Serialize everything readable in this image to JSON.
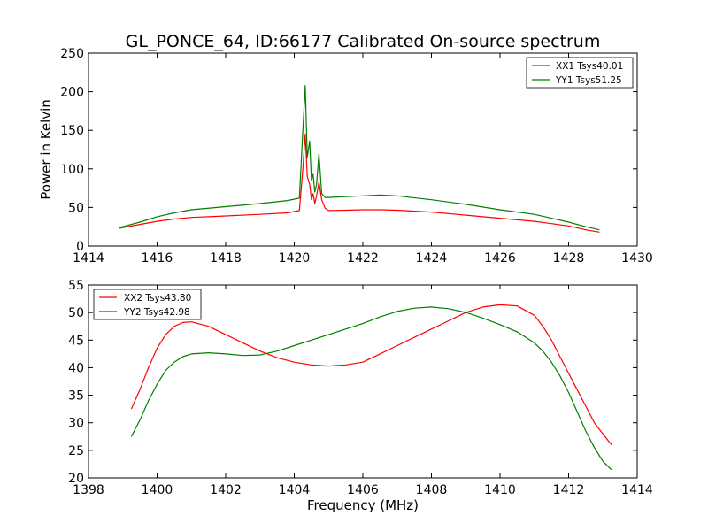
{
  "title": "GL_PONCE_64, ID:66177 Calibrated On-source spectrum",
  "colors": {
    "red": "#ff0000",
    "green": "#007f00"
  },
  "chart_data": [
    {
      "type": "line",
      "ylabel": "Power in Kelvin",
      "xlabel": "",
      "xlim": [
        1414,
        1430
      ],
      "ylim": [
        0,
        250
      ],
      "xticks": [
        "1414",
        "1416",
        "1418",
        "1420",
        "1422",
        "1424",
        "1426",
        "1428",
        "1430"
      ],
      "yticks": [
        "0",
        "50",
        "100",
        "150",
        "200",
        "250"
      ],
      "legend_position": "top-right",
      "series": [
        {
          "name": "XX1 Tsys40.01",
          "color": "#ff0000",
          "x": [
            1414.9,
            1415.5,
            1416.0,
            1416.5,
            1417.0,
            1418.0,
            1419.0,
            1419.8,
            1420.15,
            1420.25,
            1420.32,
            1420.38,
            1420.45,
            1420.5,
            1420.55,
            1420.6,
            1420.65,
            1420.72,
            1420.8,
            1420.9,
            1421.0,
            1421.5,
            1422.0,
            1422.5,
            1423.0,
            1424.0,
            1425.0,
            1426.0,
            1427.0,
            1427.5,
            1428.0,
            1428.5,
            1428.9
          ],
          "y": [
            23,
            28,
            32,
            35,
            37,
            39,
            41,
            43,
            46,
            100,
            145,
            90,
            80,
            60,
            68,
            55,
            65,
            83,
            60,
            49,
            46,
            46.5,
            47,
            47,
            46.5,
            44,
            40,
            36,
            32,
            29,
            26,
            21,
            18
          ]
        },
        {
          "name": "YY1 Tsys51.25",
          "color": "#007f00",
          "x": [
            1414.9,
            1415.5,
            1416.0,
            1416.5,
            1417.0,
            1418.0,
            1419.0,
            1419.8,
            1420.15,
            1420.25,
            1420.32,
            1420.38,
            1420.45,
            1420.5,
            1420.55,
            1420.6,
            1420.65,
            1420.72,
            1420.8,
            1420.9,
            1421.0,
            1421.5,
            1422.0,
            1422.5,
            1423.0,
            1424.0,
            1425.0,
            1426.0,
            1427.0,
            1427.5,
            1428.0,
            1428.5,
            1428.9
          ],
          "y": [
            24,
            31,
            38,
            43,
            47,
            51,
            55,
            59,
            62,
            150,
            208,
            115,
            136,
            85,
            93,
            70,
            80,
            120,
            68,
            63,
            63,
            64,
            65,
            66,
            65,
            60,
            54,
            47,
            41,
            36,
            31,
            25,
            21
          ]
        }
      ]
    },
    {
      "type": "line",
      "ylabel": "",
      "xlabel": "Frequency (MHz)",
      "xlim": [
        1398,
        1414
      ],
      "ylim": [
        20,
        55
      ],
      "xticks": [
        "1398",
        "1400",
        "1402",
        "1404",
        "1406",
        "1408",
        "1410",
        "1412",
        "1414"
      ],
      "yticks": [
        "20",
        "25",
        "30",
        "35",
        "40",
        "45",
        "50",
        "55"
      ],
      "legend_position": "top-left",
      "series": [
        {
          "name": "XX2 Tsys43.80",
          "color": "#ff0000",
          "x": [
            1399.25,
            1399.5,
            1399.75,
            1400.0,
            1400.25,
            1400.5,
            1400.75,
            1401.0,
            1401.5,
            1402.0,
            1402.5,
            1403.0,
            1403.5,
            1404.0,
            1404.5,
            1405.0,
            1405.5,
            1406.0,
            1406.5,
            1407.0,
            1407.5,
            1408.0,
            1408.5,
            1409.0,
            1409.5,
            1410.0,
            1410.5,
            1411.0,
            1411.25,
            1411.5,
            1411.75,
            1412.0,
            1412.25,
            1412.5,
            1412.75,
            1413.0,
            1413.25
          ],
          "y": [
            32.5,
            36,
            40,
            43.5,
            46,
            47.5,
            48.2,
            48.3,
            47.5,
            46,
            44.5,
            43,
            41.8,
            41,
            40.5,
            40.3,
            40.5,
            41,
            42.5,
            44,
            45.5,
            47,
            48.5,
            50,
            51,
            51.4,
            51.2,
            49.5,
            47.5,
            45,
            42,
            39,
            36,
            33,
            30,
            28,
            26
          ]
        },
        {
          "name": "YY2 Tsys42.98",
          "color": "#007f00",
          "x": [
            1399.25,
            1399.5,
            1399.75,
            1400.0,
            1400.25,
            1400.5,
            1400.75,
            1401.0,
            1401.5,
            1402.0,
            1402.5,
            1403.0,
            1403.5,
            1404.0,
            1404.5,
            1405.0,
            1405.5,
            1406.0,
            1406.5,
            1407.0,
            1407.5,
            1408.0,
            1408.5,
            1409.0,
            1409.5,
            1410.0,
            1410.5,
            1411.0,
            1411.25,
            1411.5,
            1411.75,
            1412.0,
            1412.25,
            1412.5,
            1412.75,
            1413.0,
            1413.25
          ],
          "y": [
            27.5,
            30.5,
            34,
            37,
            39.5,
            41,
            42,
            42.5,
            42.7,
            42.5,
            42.2,
            42.3,
            43,
            44,
            45,
            46,
            47,
            48,
            49.2,
            50.2,
            50.8,
            51,
            50.7,
            50,
            49,
            47.8,
            46.5,
            44.5,
            43,
            41,
            38.5,
            35.5,
            32,
            28.5,
            25.5,
            23,
            21.5
          ]
        }
      ]
    }
  ]
}
